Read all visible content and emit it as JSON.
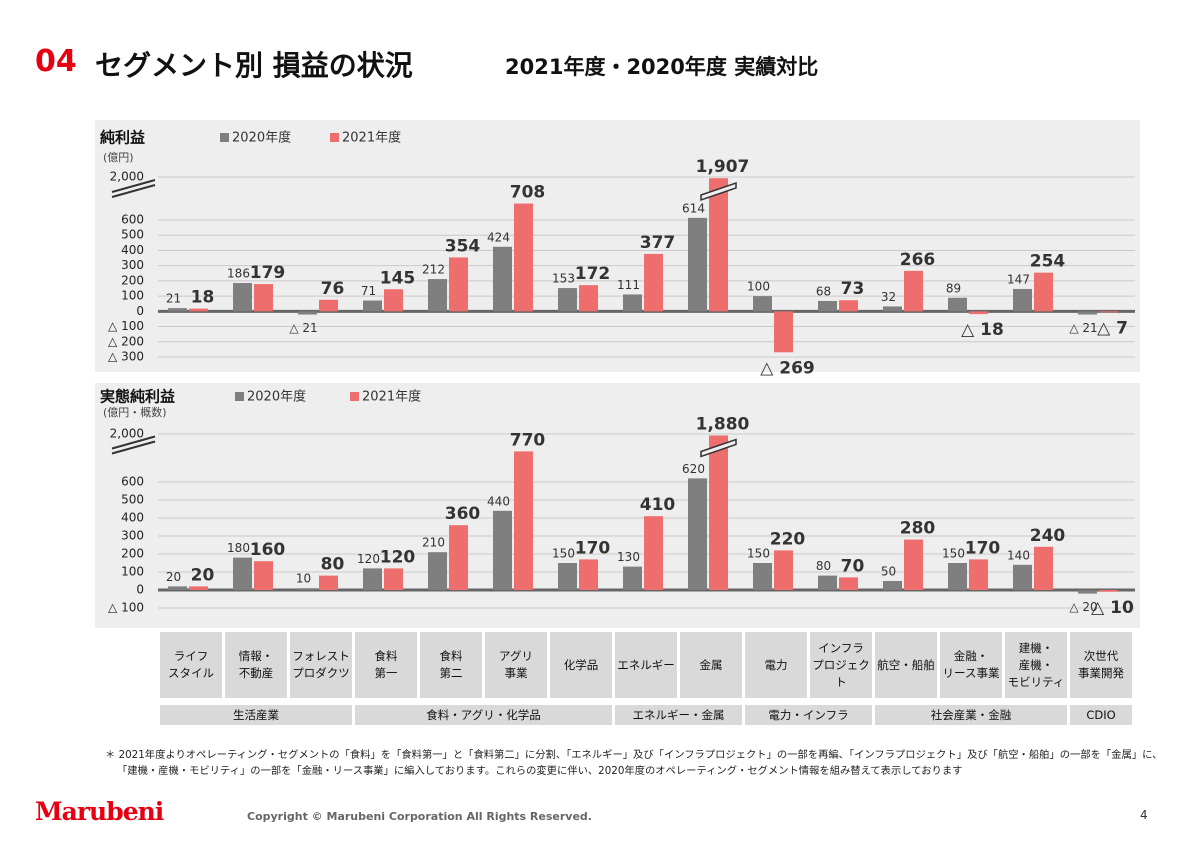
{
  "header": {
    "number": "04",
    "title": "セグメント別 損益の状況",
    "subtitle": "2021年度・2020年度 実績対比"
  },
  "chart_data": [
    {
      "type": "bar",
      "title": "純利益",
      "unit": "(億円)",
      "categories": [
        "ライフ\nスタイル",
        "情報・\n不動産",
        "フォレスト\nプロダクツ",
        "食料\n第一",
        "食料\n第二",
        "アグリ\n事業",
        "化学品",
        "エネルギー",
        "金属",
        "電力",
        "インフラ\nプロジェクト",
        "航空・船舶",
        "金融・\nリース事業",
        "建機・\n産機・\nモビリティ",
        "次世代\n事業開発"
      ],
      "series": [
        {
          "name": "2020年度",
          "color": "#7f7f7f",
          "values": [
            21,
            186,
            -21,
            71,
            212,
            424,
            153,
            111,
            614,
            100,
            68,
            32,
            89,
            147,
            -21
          ],
          "value_labels": [
            "21",
            "186",
            "△ 21",
            "71",
            "212",
            "424",
            "153",
            "111",
            "614",
            "100",
            "68",
            "32",
            "89",
            "147",
            "△ 21"
          ]
        },
        {
          "name": "2021年度",
          "color": "#ee6e6e",
          "values": [
            18,
            179,
            76,
            145,
            354,
            708,
            172,
            377,
            1907,
            -269,
            73,
            266,
            -18,
            254,
            -7
          ],
          "value_labels": [
            "18",
            "179",
            "76",
            "145",
            "354",
            "708",
            "172",
            "377",
            "1,907",
            "△ 269",
            "73",
            "266",
            "△ 18",
            "254",
            "△ 7"
          ]
        }
      ],
      "ylim": [
        -300,
        2000
      ],
      "yticks": [
        {
          "value": -300,
          "label": "△ 300"
        },
        {
          "value": -200,
          "label": "△ 200"
        },
        {
          "value": -100,
          "label": "△ 100"
        },
        0,
        100,
        200,
        300,
        400,
        500,
        600,
        {
          "value": 2000,
          "label": "2,000"
        }
      ],
      "axis_break": true,
      "grid": true
    },
    {
      "type": "bar",
      "title": "実態純利益",
      "unit": "(億円・概数)",
      "series": [
        {
          "name": "2020年度",
          "color": "#7f7f7f",
          "values": [
            20,
            180,
            10,
            120,
            210,
            440,
            150,
            130,
            620,
            150,
            80,
            50,
            150,
            140,
            -20
          ],
          "value_labels": [
            "20",
            "180",
            "10",
            "120",
            "210",
            "440",
            "150",
            "130",
            "620",
            "150",
            "80",
            "50",
            "150",
            "140",
            "△ 20"
          ]
        },
        {
          "name": "2021年度",
          "color": "#ee6e6e",
          "values": [
            20,
            160,
            80,
            120,
            360,
            770,
            170,
            410,
            1880,
            220,
            70,
            280,
            170,
            240,
            -10
          ],
          "value_labels": [
            "20",
            "160",
            "80",
            "120",
            "360",
            "770",
            "170",
            "410",
            "1,880",
            "220",
            "70",
            "280",
            "170",
            "240",
            "△ 10"
          ]
        }
      ],
      "ylim": [
        -100,
        2000
      ],
      "yticks": [
        {
          "value": -100,
          "label": "△ 100"
        },
        0,
        100,
        200,
        300,
        400,
        500,
        600,
        {
          "value": 2000,
          "label": "2,000"
        }
      ],
      "axis_break": true,
      "grid": true
    }
  ],
  "groups": [
    {
      "label": "生活産業",
      "span": 3
    },
    {
      "label": "食料・アグリ・化学品",
      "span": 4
    },
    {
      "label": "エネルギー・金属",
      "span": 2
    },
    {
      "label": "電力・インフラ",
      "span": 2
    },
    {
      "label": "社会産業・金融",
      "span": 3
    },
    {
      "label": "CDIO",
      "span": 1
    }
  ],
  "footnote": [
    "＊ 2021年度よりオペレーティング・セグメントの「食料」を「食料第一」と「食料第二」に分割、「エネルギー」及び「インフラプロジェクト」の一部を再編、「インフラプロジェクト」及び「航空・船舶」の一部を「金属」に、",
    "「建機・産機・モビリティ」の一部を「金融・リース事業」に編入しております。これらの変更に伴い、2020年度のオペレーティング・セグメント情報を組み替えて表示しております"
  ],
  "footer": {
    "logo": "Marubeni",
    "copyright": "Copyright © Marubeni Corporation All Rights Reserved.",
    "page": "4"
  }
}
